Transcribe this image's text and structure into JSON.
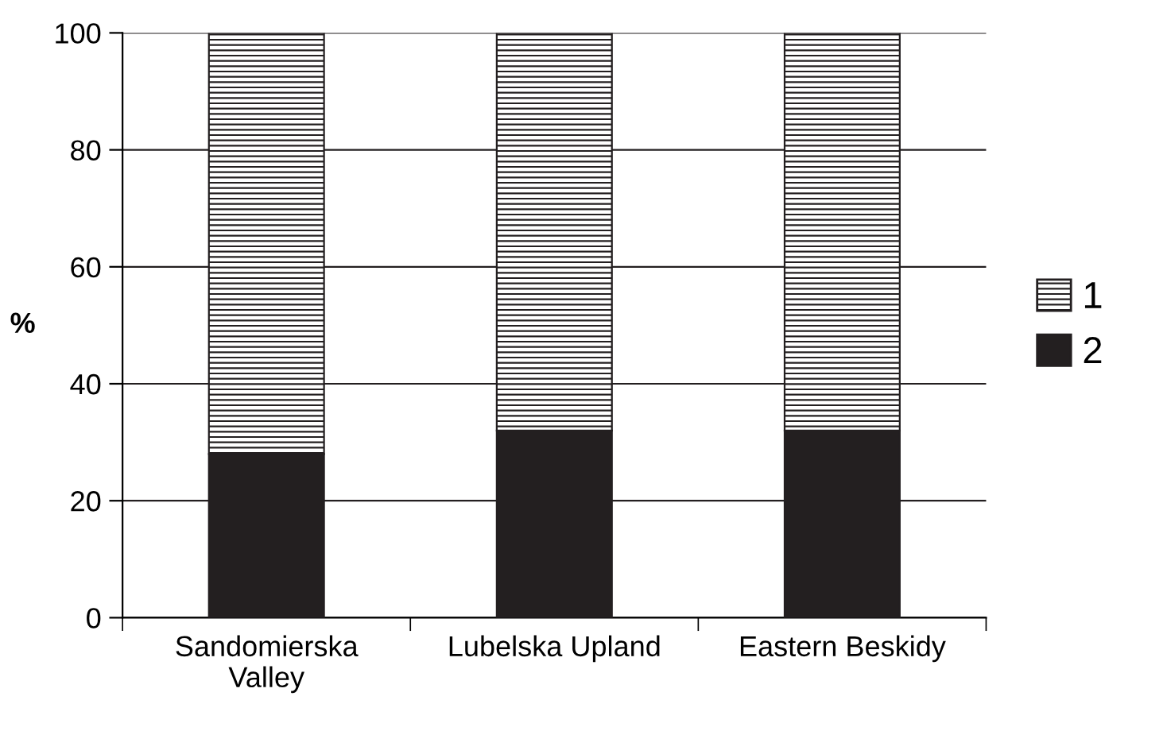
{
  "chart_data": {
    "type": "bar",
    "stacked": true,
    "ylabel": "%",
    "categories": [
      "Sandomierska\nValley",
      "Lubelska Upland",
      "Eastern Beskidy"
    ],
    "series": [
      {
        "name": "2",
        "color": "#231f20",
        "values": [
          28,
          32,
          32
        ]
      },
      {
        "name": "1",
        "color": "#231f20",
        "values": [
          72,
          68,
          68
        ]
      }
    ],
    "ylim": [
      0,
      100
    ],
    "yticks": [
      0,
      20,
      40,
      60,
      80,
      100
    ],
    "grid": "y",
    "legend": "right"
  }
}
